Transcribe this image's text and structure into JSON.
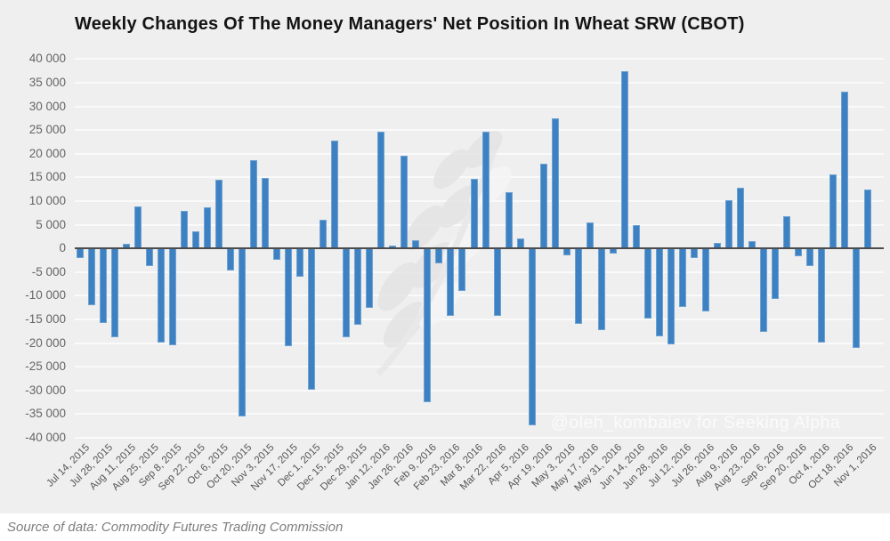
{
  "title": "Weekly Changes Of The Money Managers' Net Position In Wheat SRW (CBOT)",
  "watermark": "@oleh_kombaiev for Seeking Alpha",
  "source_note": "Source of data: Commodity Futures Trading Commission",
  "colors": {
    "bar": "#3e81c3",
    "bar_edge": "#6ea3d2",
    "background": "#efefef",
    "gridline": "#fafafa",
    "zero_line": "#4c4c4c",
    "title_text": "#141414",
    "axis_text": "#666666",
    "watermark_text": "#fbfbfb",
    "source_text": "#7f7f7f",
    "source_bg": "#ffffff",
    "wheat_mark": "#e4e4e4"
  },
  "chart_data": {
    "type": "bar",
    "title": "Weekly Changes Of The Money Managers' Net Position In Wheat SRW (CBOT)",
    "xlabel": "",
    "ylabel": "",
    "ylim": [
      -40000,
      40000
    ],
    "ytick_step": 5000,
    "grid": true,
    "legend": false,
    "y_tick_labels": [
      "40 000",
      "35 000",
      "30 000",
      "25 000",
      "20 000",
      "15 000",
      "10 000",
      "5 000",
      "0",
      "-5 000",
      "-10 000",
      "-15 000",
      "-20 000",
      "-25 000",
      "-30 000",
      "-35 000",
      "-40 000"
    ],
    "x_tick_labels": [
      "Jul 14, 2015",
      "Jul 28, 2015",
      "Aug 11, 2015",
      "Aug 25, 2015",
      "Sep 8, 2015",
      "Sep 22, 2015",
      "Oct 6, 2015",
      "Oct 20, 2015",
      "Nov 3, 2015",
      "Nov 17, 2015",
      "Dec 1, 2015",
      "Dec 15, 2015",
      "Dec 29, 2015",
      "Jan 12, 2016",
      "Jan 26, 2016",
      "Feb 9, 2016",
      "Feb 23, 2016",
      "Mar 8, 2016",
      "Mar 22, 2016",
      "Apr 5, 2016",
      "Apr 19, 2016",
      "May 3, 2016",
      "May 17, 2016",
      "May 31, 2016",
      "Jun 14, 2016",
      "Jun 28, 2016",
      "Jul 12, 2016",
      "Jul 26, 2016",
      "Aug 9, 2016",
      "Aug 23, 2016",
      "Sep 6, 2016",
      "Sep 20, 2016",
      "Oct 4, 2016",
      "Oct 18, 2016",
      "Nov 1, 2016"
    ],
    "x": [
      "Jul 14, 2015",
      "Jul 21, 2015",
      "Jul 28, 2015",
      "Aug 4, 2015",
      "Aug 11, 2015",
      "Aug 18, 2015",
      "Aug 25, 2015",
      "Sep 1, 2015",
      "Sep 8, 2015",
      "Sep 15, 2015",
      "Sep 22, 2015",
      "Sep 29, 2015",
      "Oct 6, 2015",
      "Oct 13, 2015",
      "Oct 20, 2015",
      "Oct 27, 2015",
      "Nov 3, 2015",
      "Nov 10, 2015",
      "Nov 17, 2015",
      "Nov 24, 2015",
      "Dec 1, 2015",
      "Dec 8, 2015",
      "Dec 15, 2015",
      "Dec 22, 2015",
      "Dec 29, 2015",
      "Jan 5, 2016",
      "Jan 12, 2016",
      "Jan 19, 2016",
      "Jan 26, 2016",
      "Feb 2, 2016",
      "Feb 9, 2016",
      "Feb 16, 2016",
      "Feb 23, 2016",
      "Mar 1, 2016",
      "Mar 8, 2016",
      "Mar 15, 2016",
      "Mar 22, 2016",
      "Mar 29, 2016",
      "Apr 5, 2016",
      "Apr 12, 2016",
      "Apr 19, 2016",
      "Apr 26, 2016",
      "May 3, 2016",
      "May 10, 2016",
      "May 17, 2016",
      "May 24, 2016",
      "May 31, 2016",
      "Jun 7, 2016",
      "Jun 14, 2016",
      "Jun 21, 2016",
      "Jun 28, 2016",
      "Jul 5, 2016",
      "Jul 12, 2016",
      "Jul 19, 2016",
      "Jul 26, 2016",
      "Aug 2, 2016",
      "Aug 9, 2016",
      "Aug 16, 2016",
      "Aug 23, 2016",
      "Aug 30, 2016",
      "Sep 6, 2016",
      "Sep 13, 2016",
      "Sep 20, 2016",
      "Sep 27, 2016",
      "Oct 4, 2016",
      "Oct 11, 2016",
      "Oct 18, 2016",
      "Oct 25, 2016",
      "Nov 1, 2016"
    ],
    "values": [
      -2000,
      -11900,
      -15800,
      -18800,
      1000,
      8900,
      -3700,
      -19800,
      -20400,
      7900,
      3600,
      8700,
      14500,
      -4600,
      -35400,
      18700,
      14800,
      -2400,
      -20600,
      -5900,
      -29900,
      6100,
      22800,
      -18800,
      -16200,
      -12500,
      24700,
      600,
      19500,
      1700,
      -32400,
      -3200,
      -14300,
      -8900,
      14600,
      24700,
      -14200,
      11900,
      2100,
      -37300,
      17800,
      27400,
      -1500,
      -16000,
      5400,
      -17200,
      -1000,
      37500,
      4900,
      -14800,
      -18600,
      -20200,
      -12400,
      -2000,
      -13300,
      1100,
      10100,
      12800,
      1600,
      -17700,
      -10700,
      6800,
      -1700,
      -3800,
      -19900,
      15700,
      33100,
      -21100,
      12500
    ]
  }
}
